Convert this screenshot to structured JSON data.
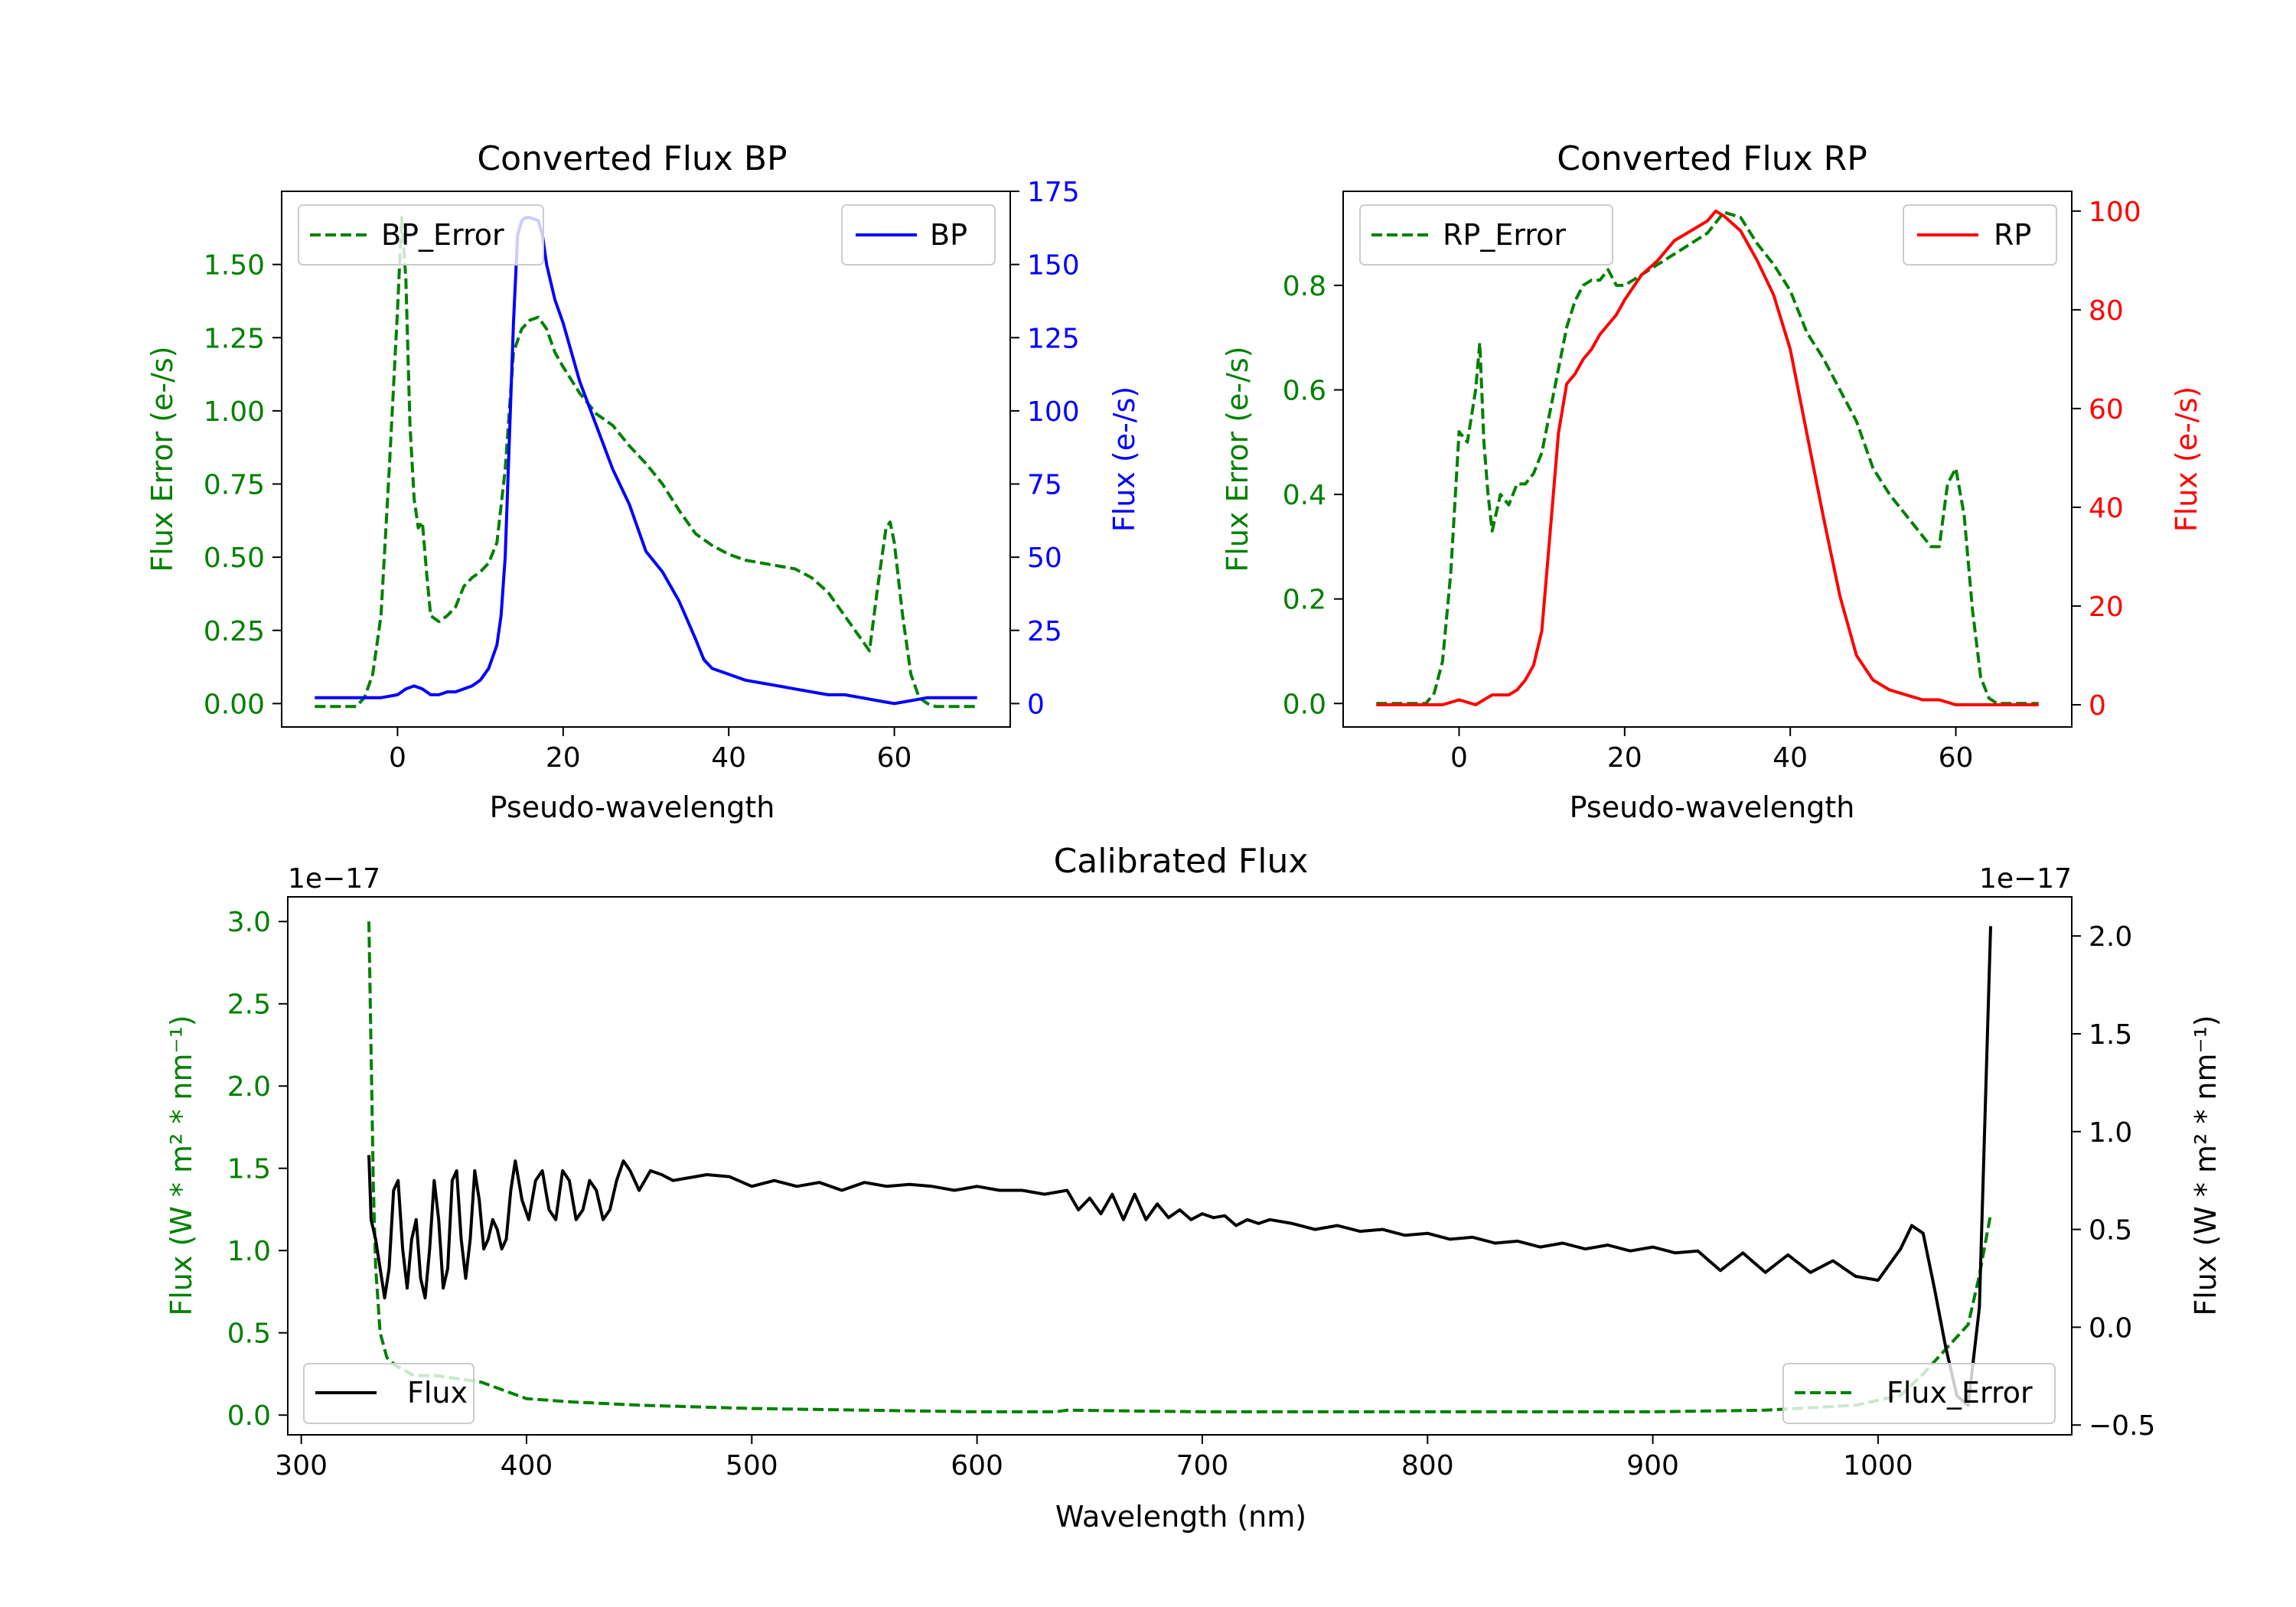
{
  "colors": {
    "bp": "#0000ff",
    "rp": "#ff0000",
    "error": "#008000",
    "flux": "#000000",
    "axis": "#000000"
  },
  "chart_data": [
    {
      "id": "bp",
      "type": "line",
      "title": "Converted Flux BP",
      "xlabel": "Pseudo-wavelength",
      "ylabel_left": "Flux Error (e-/s)",
      "ylabel_right": "Flux (e-/s)",
      "xlim": [
        -14,
        74
      ],
      "ylim_left": [
        -0.08,
        1.75
      ],
      "ylim_right": [
        -8.0,
        175.0
      ],
      "xticks": [
        0,
        20,
        40,
        60
      ],
      "xtick_labels": [
        "0",
        "20",
        "40",
        "60"
      ],
      "yticks_left": [
        0.0,
        0.25,
        0.5,
        0.75,
        1.0,
        1.25,
        1.5
      ],
      "yticks_left_labels": [
        "0.00",
        "0.25",
        "0.50",
        "0.75",
        "1.00",
        "1.25",
        "1.50"
      ],
      "yticks_right": [
        0,
        25,
        50,
        75,
        100,
        125,
        150,
        175
      ],
      "yticks_right_labels": [
        "0",
        "25",
        "50",
        "75",
        "100",
        "125",
        "150",
        "175"
      ],
      "legend_left": {
        "label": "BP_Error",
        "position": "upper left"
      },
      "legend_right": {
        "label": "BP",
        "position": "upper right"
      },
      "series": [
        {
          "name": "BP_Error",
          "axis": "left",
          "style": "dashed",
          "colorKey": "error",
          "x": [
            -10,
            -5,
            -4,
            -3,
            -2,
            -1,
            0,
            0.5,
            1,
            1.5,
            2,
            2.5,
            3,
            3.5,
            4,
            4.5,
            5,
            6,
            7,
            8,
            9,
            10,
            11,
            12,
            13,
            14,
            15,
            16,
            17,
            18,
            19,
            20,
            22,
            24,
            26,
            28,
            30,
            32,
            34,
            36,
            38,
            40,
            42,
            44,
            46,
            48,
            50,
            52,
            54,
            56,
            57,
            58,
            59,
            59.5,
            60,
            61,
            62,
            63,
            64,
            65,
            70
          ],
          "y": [
            -0.01,
            -0.01,
            0.02,
            0.1,
            0.3,
            0.8,
            1.35,
            1.66,
            1.45,
            0.95,
            0.7,
            0.6,
            0.62,
            0.45,
            0.3,
            0.29,
            0.28,
            0.3,
            0.33,
            0.4,
            0.43,
            0.45,
            0.48,
            0.55,
            0.8,
            1.2,
            1.28,
            1.31,
            1.32,
            1.28,
            1.2,
            1.15,
            1.06,
            0.99,
            0.95,
            0.88,
            0.82,
            0.75,
            0.66,
            0.58,
            0.54,
            0.51,
            0.49,
            0.48,
            0.47,
            0.46,
            0.43,
            0.38,
            0.3,
            0.22,
            0.18,
            0.4,
            0.6,
            0.62,
            0.55,
            0.3,
            0.1,
            0.02,
            0.0,
            -0.01,
            -0.01
          ]
        },
        {
          "name": "BP",
          "axis": "right",
          "style": "solid",
          "colorKey": "bp",
          "x": [
            -10,
            -2,
            0,
            1,
            2,
            3,
            4,
            5,
            6,
            7,
            8,
            9,
            10,
            11,
            12,
            12.5,
            13,
            13.5,
            14,
            14.5,
            15,
            15.5,
            16,
            17,
            17.5,
            18,
            19,
            20,
            22,
            24,
            26,
            28,
            30,
            32,
            34,
            36,
            37,
            38,
            40,
            42,
            44,
            46,
            48,
            50,
            52,
            54,
            56,
            58,
            60,
            62,
            64,
            66,
            70
          ],
          "y": [
            2,
            2,
            3,
            5,
            6,
            5,
            3,
            3,
            4,
            4,
            5,
            6,
            8,
            12,
            20,
            30,
            50,
            90,
            130,
            160,
            165,
            166,
            166,
            165,
            160,
            150,
            138,
            130,
            110,
            95,
            80,
            68,
            52,
            45,
            35,
            22,
            15,
            12,
            10,
            8,
            7,
            6,
            5,
            4,
            3,
            3,
            2,
            1,
            0,
            1,
            2,
            2,
            2
          ]
        }
      ]
    },
    {
      "id": "rp",
      "type": "line",
      "title": "Converted Flux RP",
      "xlabel": "Pseudo-wavelength",
      "ylabel_left": "Flux Error (e-/s)",
      "ylabel_right": "Flux (e-/s)",
      "xlim": [
        -14,
        74
      ],
      "ylim_left": [
        -0.045,
        0.98
      ],
      "ylim_right": [
        -4.5,
        104.0
      ],
      "xticks": [
        0,
        20,
        40,
        60
      ],
      "xtick_labels": [
        "0",
        "20",
        "40",
        "60"
      ],
      "yticks_left": [
        0.0,
        0.2,
        0.4,
        0.6,
        0.8
      ],
      "yticks_left_labels": [
        "0.0",
        "0.2",
        "0.4",
        "0.6",
        "0.8"
      ],
      "yticks_right": [
        0,
        20,
        40,
        60,
        80,
        100
      ],
      "yticks_right_labels": [
        "0",
        "20",
        "40",
        "60",
        "80",
        "100"
      ],
      "legend_left": {
        "label": "RP_Error",
        "position": "upper left"
      },
      "legend_right": {
        "label": "RP",
        "position": "upper right"
      },
      "series": [
        {
          "name": "RP_Error",
          "axis": "left",
          "style": "dashed",
          "colorKey": "error",
          "x": [
            -10,
            -4,
            -3,
            -2,
            -1,
            0,
            1,
            2,
            2.5,
            3,
            3.5,
            4,
            5,
            6,
            7,
            8,
            9,
            10,
            11,
            12,
            13,
            14,
            15,
            16,
            17,
            18,
            19,
            20,
            22,
            24,
            26,
            28,
            30,
            32,
            34,
            36,
            38,
            40,
            42,
            44,
            46,
            48,
            50,
            52,
            54,
            55,
            56,
            57,
            58,
            59,
            60,
            61,
            62,
            63,
            64,
            65,
            70
          ],
          "y": [
            0.0,
            0.0,
            0.02,
            0.08,
            0.25,
            0.52,
            0.5,
            0.6,
            0.69,
            0.5,
            0.4,
            0.33,
            0.4,
            0.38,
            0.42,
            0.42,
            0.44,
            0.48,
            0.56,
            0.64,
            0.72,
            0.77,
            0.8,
            0.81,
            0.81,
            0.83,
            0.8,
            0.8,
            0.82,
            0.84,
            0.86,
            0.88,
            0.9,
            0.94,
            0.93,
            0.88,
            0.84,
            0.79,
            0.71,
            0.66,
            0.6,
            0.54,
            0.45,
            0.4,
            0.36,
            0.34,
            0.32,
            0.3,
            0.3,
            0.42,
            0.45,
            0.36,
            0.18,
            0.05,
            0.01,
            0.0,
            0.0
          ]
        },
        {
          "name": "RP",
          "axis": "right",
          "style": "solid",
          "colorKey": "rp",
          "x": [
            -10,
            -4,
            -2,
            0,
            2,
            3,
            4,
            5,
            6,
            7,
            8,
            9,
            10,
            11,
            12,
            13,
            14,
            15,
            16,
            17,
            18,
            19,
            20,
            22,
            24,
            26,
            28,
            30,
            31,
            32,
            34,
            36,
            38,
            40,
            42,
            44,
            46,
            48,
            50,
            52,
            54,
            56,
            58,
            60,
            62,
            64,
            70
          ],
          "y": [
            0,
            0,
            0,
            1,
            0,
            1,
            2,
            2,
            2,
            3,
            5,
            8,
            15,
            35,
            55,
            65,
            67,
            70,
            72,
            75,
            77,
            79,
            82,
            87,
            90,
            94,
            96,
            98,
            100,
            99,
            96,
            90,
            83,
            72,
            55,
            38,
            22,
            10,
            5,
            3,
            2,
            1,
            1,
            0,
            0,
            0,
            0
          ]
        }
      ]
    },
    {
      "id": "cal",
      "type": "line",
      "title": "Calibrated Flux",
      "xlabel": "Wavelength (nm)",
      "ylabel_left": "Flux (W * m² * nm⁻¹)",
      "ylabel_right": "Flux (W * m² * nm⁻¹)",
      "offset_left": "1e−17",
      "offset_right": "1e−17",
      "xlim": [
        294,
        1086
      ],
      "ylim_left": [
        -0.12,
        3.15
      ],
      "ylim_right": [
        -0.55,
        2.2
      ],
      "xticks": [
        300,
        400,
        500,
        600,
        700,
        800,
        900,
        1000
      ],
      "xtick_labels": [
        "300",
        "400",
        "500",
        "600",
        "700",
        "800",
        "900",
        "1000"
      ],
      "yticks_left": [
        0.0,
        0.5,
        1.0,
        1.5,
        2.0,
        2.5,
        3.0
      ],
      "yticks_left_labels": [
        "0.0",
        "0.5",
        "1.0",
        "1.5",
        "2.0",
        "2.5",
        "3.0"
      ],
      "yticks_right": [
        -0.5,
        0.0,
        0.5,
        1.0,
        1.5,
        2.0
      ],
      "yticks_right_labels": [
        "−0.5",
        "0.0",
        "0.5",
        "1.0",
        "1.5",
        "2.0"
      ],
      "legend_left": {
        "label": "Flux",
        "position": "lower left"
      },
      "legend_right": {
        "label": "Flux_Error",
        "position": "lower right"
      },
      "series": [
        {
          "name": "Flux_Error",
          "axis": "left",
          "style": "dashed",
          "colorKey": "error",
          "x": [
            330,
            331,
            332,
            333,
            335,
            338,
            342,
            350,
            360,
            370,
            380,
            390,
            400,
            420,
            450,
            500,
            550,
            600,
            635,
            640,
            700,
            800,
            900,
            950,
            990,
            1010,
            1020,
            1030,
            1040,
            1045,
            1050
          ],
          "y": [
            3.0,
            2.2,
            1.4,
            0.9,
            0.5,
            0.35,
            0.3,
            0.24,
            0.24,
            0.22,
            0.2,
            0.15,
            0.1,
            0.08,
            0.06,
            0.04,
            0.03,
            0.02,
            0.02,
            0.03,
            0.02,
            0.02,
            0.02,
            0.03,
            0.06,
            0.12,
            0.25,
            0.4,
            0.55,
            0.85,
            1.22
          ]
        },
        {
          "name": "Flux",
          "axis": "right",
          "style": "solid",
          "colorKey": "flux",
          "x": [
            330,
            331,
            333,
            335,
            337,
            339,
            341,
            343,
            345,
            347,
            349,
            351,
            353,
            355,
            357,
            359,
            361,
            363,
            365,
            367,
            369,
            371,
            373,
            375,
            377,
            379,
            381,
            383,
            385,
            387,
            389,
            391,
            393,
            395,
            398,
            401,
            404,
            407,
            410,
            413,
            416,
            419,
            422,
            425,
            428,
            431,
            434,
            437,
            440,
            443,
            446,
            450,
            455,
            460,
            465,
            470,
            475,
            480,
            490,
            500,
            510,
            520,
            530,
            540,
            550,
            560,
            570,
            580,
            590,
            600,
            610,
            620,
            630,
            640,
            645,
            650,
            655,
            660,
            665,
            670,
            675,
            680,
            685,
            690,
            695,
            700,
            705,
            710,
            715,
            720,
            725,
            730,
            740,
            750,
            760,
            770,
            780,
            790,
            800,
            810,
            820,
            830,
            840,
            850,
            860,
            870,
            880,
            890,
            900,
            910,
            920,
            930,
            940,
            950,
            960,
            970,
            980,
            990,
            1000,
            1010,
            1015,
            1020,
            1025,
            1030,
            1035,
            1040,
            1045,
            1050
          ],
          "y": [
            0.88,
            0.55,
            0.45,
            0.3,
            0.15,
            0.3,
            0.7,
            0.75,
            0.4,
            0.2,
            0.45,
            0.55,
            0.25,
            0.15,
            0.4,
            0.75,
            0.55,
            0.2,
            0.3,
            0.75,
            0.8,
            0.45,
            0.25,
            0.45,
            0.8,
            0.65,
            0.4,
            0.45,
            0.55,
            0.5,
            0.4,
            0.45,
            0.7,
            0.85,
            0.65,
            0.55,
            0.75,
            0.8,
            0.6,
            0.55,
            0.8,
            0.75,
            0.55,
            0.6,
            0.75,
            0.7,
            0.55,
            0.6,
            0.75,
            0.85,
            0.8,
            0.7,
            0.8,
            0.78,
            0.75,
            0.76,
            0.77,
            0.78,
            0.77,
            0.72,
            0.75,
            0.72,
            0.74,
            0.7,
            0.74,
            0.72,
            0.73,
            0.72,
            0.7,
            0.72,
            0.7,
            0.7,
            0.68,
            0.7,
            0.6,
            0.66,
            0.58,
            0.68,
            0.55,
            0.68,
            0.55,
            0.63,
            0.56,
            0.6,
            0.55,
            0.58,
            0.56,
            0.57,
            0.52,
            0.55,
            0.53,
            0.55,
            0.53,
            0.5,
            0.52,
            0.49,
            0.5,
            0.47,
            0.48,
            0.45,
            0.46,
            0.43,
            0.44,
            0.41,
            0.43,
            0.4,
            0.42,
            0.39,
            0.41,
            0.38,
            0.39,
            0.29,
            0.38,
            0.28,
            0.37,
            0.28,
            0.34,
            0.26,
            0.24,
            0.4,
            0.52,
            0.48,
            0.2,
            -0.1,
            -0.35,
            -0.4,
            0.1,
            2.05
          ]
        }
      ]
    }
  ]
}
